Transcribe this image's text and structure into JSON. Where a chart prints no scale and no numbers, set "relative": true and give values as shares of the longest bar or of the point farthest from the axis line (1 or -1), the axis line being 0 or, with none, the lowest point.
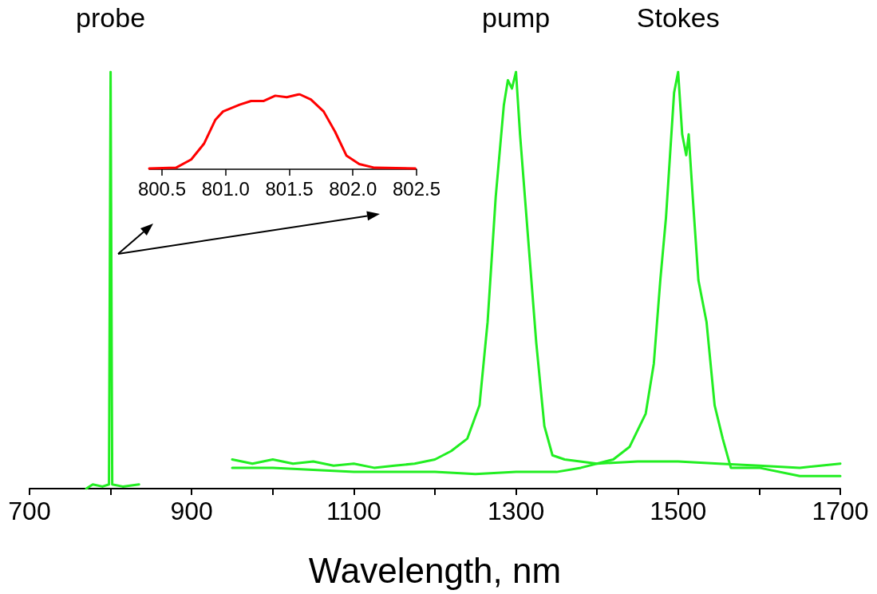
{
  "chart_data": [
    {
      "type": "line",
      "xlabel": "Wavelength, nm",
      "relative": true,
      "grid": false,
      "marker": "none",
      "line_style": "solid",
      "tick_labels": "x",
      "xlim": [
        700,
        1700
      ],
      "xticks": [
        700,
        {
          "value": 800,
          "label": null
        },
        900,
        {
          "value": 1000,
          "label": null
        },
        1100,
        {
          "value": 1200,
          "label": null
        },
        1300,
        {
          "value": 1400,
          "label": null
        },
        1500,
        {
          "value": 1600,
          "label": null
        },
        1700
      ],
      "annotations": [
        "probe",
        "pump",
        "Stokes"
      ],
      "series": [
        {
          "color": "#22ee22",
          "x": [
            770,
            778,
            790,
            798,
            799,
            800,
            801,
            802,
            815,
            835
          ],
          "values": [
            0,
            0.01,
            0.005,
            0.01,
            0.5,
            1.0,
            0.5,
            0.01,
            0.005,
            0.01
          ]
        },
        {
          "color": "#22ee22",
          "x": [
            950,
            975,
            1000,
            1025,
            1050,
            1075,
            1100,
            1125,
            1150,
            1175,
            1200,
            1220,
            1240,
            1255,
            1265,
            1275,
            1285,
            1290,
            1295,
            1300,
            1305,
            1315,
            1325,
            1335,
            1345,
            1360,
            1400,
            1450,
            1500,
            1550,
            1600,
            1650,
            1700
          ],
          "values": [
            0.07,
            0.06,
            0.07,
            0.06,
            0.065,
            0.055,
            0.06,
            0.05,
            0.055,
            0.06,
            0.07,
            0.09,
            0.12,
            0.2,
            0.4,
            0.7,
            0.92,
            0.98,
            0.96,
            1.0,
            0.85,
            0.6,
            0.35,
            0.15,
            0.08,
            0.07,
            0.06,
            0.065,
            0.065,
            0.06,
            0.055,
            0.05,
            0.06
          ]
        },
        {
          "color": "#22ee22",
          "x": [
            950,
            1000,
            1050,
            1100,
            1150,
            1200,
            1250,
            1300,
            1350,
            1380,
            1420,
            1440,
            1460,
            1470,
            1478,
            1485,
            1490,
            1495,
            1500,
            1505,
            1510,
            1513,
            1518,
            1525,
            1535,
            1545,
            1555,
            1565,
            1600,
            1650,
            1700
          ],
          "values": [
            0.05,
            0.05,
            0.045,
            0.04,
            0.04,
            0.04,
            0.035,
            0.04,
            0.04,
            0.05,
            0.07,
            0.1,
            0.18,
            0.3,
            0.5,
            0.65,
            0.8,
            0.95,
            1.0,
            0.85,
            0.8,
            0.85,
            0.7,
            0.5,
            0.4,
            0.2,
            0.12,
            0.05,
            0.05,
            0.03,
            0.03
          ]
        }
      ]
    },
    {
      "type": "line",
      "relative": true,
      "grid": false,
      "marker": "none",
      "line_style": "solid",
      "tick_labels": "x",
      "xlim": [
        800.4,
        802.5
      ],
      "xticks": [
        800.5,
        {
          "value": 801,
          "label": "801.0"
        },
        801.5,
        {
          "value": 802,
          "label": "802.0"
        },
        802.5
      ],
      "series": [
        {
          "color": "#ff0000",
          "x": [
            800.4,
            800.61,
            800.73,
            800.83,
            800.92,
            800.98,
            801.11,
            801.2,
            801.3,
            801.39,
            801.48,
            801.58,
            801.67,
            801.77,
            801.86,
            801.95,
            802.05,
            802.17,
            802.49
          ],
          "values": [
            0.01,
            0.02,
            0.13,
            0.34,
            0.66,
            0.77,
            0.86,
            0.91,
            0.91,
            0.98,
            0.96,
            1.0,
            0.93,
            0.77,
            0.5,
            0.18,
            0.07,
            0.02,
            0.01
          ]
        }
      ]
    }
  ]
}
